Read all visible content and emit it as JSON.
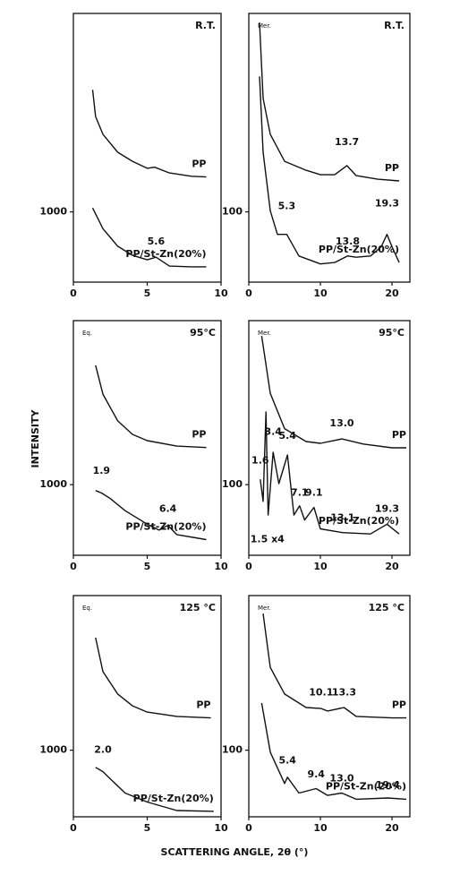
{
  "y_label": "INTENSITY",
  "x_label": "SCATTERING ANGLE, 2θ (°)",
  "chart_data": [
    {
      "type": "line",
      "condition": "R.T.",
      "log_y": true,
      "xlim": [
        0,
        10
      ],
      "xticks": [
        0,
        5,
        10
      ],
      "ylim": [
        300,
        30000
      ],
      "yticks": [
        1000
      ],
      "series": [
        {
          "name": "PP",
          "color": "#111111",
          "x": [
            1.3,
            1.5,
            2,
            3,
            4,
            5,
            5.5,
            6.5,
            8,
            9
          ],
          "values": [
            8100,
            5130,
            3780,
            2780,
            2380,
            2110,
            2150,
            1950,
            1840,
            1820
          ]
        },
        {
          "name": "PP/St-Zn(20%)",
          "color": "#111111",
          "x": [
            1.3,
            2,
            3,
            4,
            5,
            5.6,
            6.5,
            8,
            9
          ],
          "values": [
            1070,
            750,
            555,
            475,
            440,
            460,
            395,
            390,
            390
          ]
        }
      ],
      "annotations": [
        {
          "text": "5.6",
          "x": 5.6,
          "y": 600
        }
      ]
    },
    {
      "type": "line",
      "condition": "R.T.",
      "direction": "Mer.",
      "log_y": true,
      "xlim": [
        0,
        22.5
      ],
      "xticks": [
        0,
        10,
        20
      ],
      "ylim": [
        30,
        3000
      ],
      "yticks": [
        100
      ],
      "series": [
        {
          "name": "PP",
          "color": "#111111",
          "x": [
            1.5,
            2,
            3,
            5,
            8,
            10,
            12,
            13.7,
            15,
            18,
            21
          ],
          "values": [
            2570,
            700,
            378,
            238,
            204,
            189,
            189,
            221,
            186,
            175,
            170
          ]
        },
        {
          "name": "PP/St-Zn(20%)",
          "color": "#111111",
          "x": [
            1.5,
            2,
            3,
            4,
            5.3,
            7,
            10,
            12,
            13.8,
            15,
            17,
            18.5,
            19.3,
            20,
            21
          ],
          "values": [
            1020,
            278,
            102,
            68,
            68,
            47,
            41,
            42,
            47,
            46,
            47,
            55,
            68,
            55,
            42
          ]
        }
      ],
      "annotations": [
        {
          "text": "13.7",
          "x": 13.7,
          "y": 330
        },
        {
          "text": "5.3",
          "x": 5.3,
          "y": 110
        },
        {
          "text": "13.8",
          "x": 13.8,
          "y": 60
        },
        {
          "text": "19.3",
          "x": 19.3,
          "y": 115
        }
      ]
    },
    {
      "type": "line",
      "condition": "95°C",
      "direction": "Eq.",
      "log_y": true,
      "xlim": [
        0,
        10
      ],
      "xticks": [
        0,
        5,
        10
      ],
      "ylim": [
        250,
        25000
      ],
      "yticks": [
        1000
      ],
      "series": [
        {
          "name": "PP",
          "color": "#111111",
          "x": [
            1.5,
            2,
            3,
            4,
            5,
            7,
            9
          ],
          "values": [
            10400,
            5900,
            3500,
            2680,
            2370,
            2130,
            2070
          ]
        },
        {
          "name": "PP/St-Zn(20%)",
          "color": "#111111",
          "x": [
            1.5,
            1.9,
            2.5,
            3.5,
            5,
            5.8,
            6.4,
            7,
            9
          ],
          "values": [
            890,
            850,
            760,
            600,
            460,
            410,
            450,
            375,
            340
          ]
        }
      ],
      "annotations": [
        {
          "text": "1.9",
          "x": 1.9,
          "y": 1300
        },
        {
          "text": "6.4",
          "x": 6.4,
          "y": 620
        }
      ]
    },
    {
      "type": "line",
      "condition": "95°C",
      "direction": "Mer.",
      "log_y": true,
      "xlim": [
        0,
        22.5
      ],
      "xticks": [
        0,
        10,
        20
      ],
      "ylim": [
        25,
        2500
      ],
      "yticks": [
        100
      ],
      "series": [
        {
          "name": "PP",
          "color": "#111111",
          "x": [
            1.8,
            3,
            5,
            8,
            10,
            13,
            16,
            20,
            22
          ],
          "values": [
            1850,
            600,
            300,
            233,
            225,
            245,
            222,
            206,
            206
          ]
        },
        {
          "name": "PP/St-Zn(20%)",
          "color": "#111111",
          "x": [
            1.6,
            2,
            2.4,
            2.7,
            3.4,
            4.2,
            5.4,
            6.3,
            7.1,
            7.8,
            9.1,
            10,
            13.1,
            17,
            19.3,
            21
          ],
          "values": [
            111,
            72,
            416,
            55,
            189,
            102,
            179,
            55,
            66,
            50,
            64,
            42,
            39,
            38,
            46,
            38
          ]
        }
      ],
      "annotations": [
        {
          "text": "13.0",
          "x": 13,
          "y": 330
        },
        {
          "text": "1.6",
          "x": 1.6,
          "y": 160
        },
        {
          "text": "3.4",
          "x": 3.4,
          "y": 280
        },
        {
          "text": "5.4",
          "x": 5.4,
          "y": 260
        },
        {
          "text": "7.1",
          "x": 7.1,
          "y": 85
        },
        {
          "text": "9.1",
          "x": 9.1,
          "y": 85
        },
        {
          "text": "13.1",
          "x": 13.1,
          "y": 52
        },
        {
          "text": "19.3",
          "x": 19.3,
          "y": 62
        },
        {
          "text": "1.5 x4",
          "x": 2.6,
          "y": 34
        }
      ]
    },
    {
      "type": "line",
      "condition": "125 °C",
      "direction": "Eq.",
      "log_y": true,
      "xlim": [
        0,
        10
      ],
      "xticks": [
        0,
        5,
        10
      ],
      "ylim": [
        250,
        25000
      ],
      "yticks": [
        1000
      ],
      "series": [
        {
          "name": "PP",
          "color": "#111111",
          "x": [
            1.5,
            2,
            3,
            4,
            5,
            7,
            9.3
          ],
          "values": [
            10400,
            5130,
            3220,
            2520,
            2210,
            2020,
            1960
          ]
        },
        {
          "name": "PP/St-Zn(20%)",
          "color": "#111111",
          "x": [
            1.5,
            2,
            2.5,
            3.5,
            5,
            7,
            9.5
          ],
          "values": [
            700,
            640,
            550,
            410,
            340,
            285,
            280
          ]
        }
      ],
      "annotations": [
        {
          "text": "2.0",
          "x": 2,
          "y": 1000
        }
      ]
    },
    {
      "type": "line",
      "condition": "125 °C",
      "direction": "Mer.",
      "log_y": true,
      "xlim": [
        0,
        22.5
      ],
      "xticks": [
        0,
        10,
        20
      ],
      "ylim": [
        25,
        2500
      ],
      "yticks": [
        100
      ],
      "series": [
        {
          "name": "PP",
          "color": "#111111",
          "x": [
            2,
            3,
            5,
            8,
            10.1,
            11,
            13.3,
            15,
            20,
            22
          ],
          "values": [
            1720,
            560,
            322,
            243,
            238,
            226,
            243,
            202,
            196,
            196
          ]
        },
        {
          "name": "PP/St-Zn(20%)",
          "color": "#111111",
          "x": [
            1.8,
            3,
            5,
            5.4,
            7,
            9.4,
            11,
            13,
            15,
            19.4,
            22
          ],
          "values": [
            267,
            96,
            50,
            57,
            41,
            45,
            39,
            41,
            36,
            37,
            36
          ]
        }
      ],
      "annotations": [
        {
          "text": "10.1",
          "x": 10.1,
          "y": 330
        },
        {
          "text": "13.3",
          "x": 13.3,
          "y": 330
        },
        {
          "text": "5.4",
          "x": 5.4,
          "y": 80
        },
        {
          "text": "9.4",
          "x": 9.4,
          "y": 60
        },
        {
          "text": "13.0",
          "x": 13,
          "y": 55
        },
        {
          "text": "19.4",
          "x": 19.4,
          "y": 48
        }
      ]
    }
  ]
}
